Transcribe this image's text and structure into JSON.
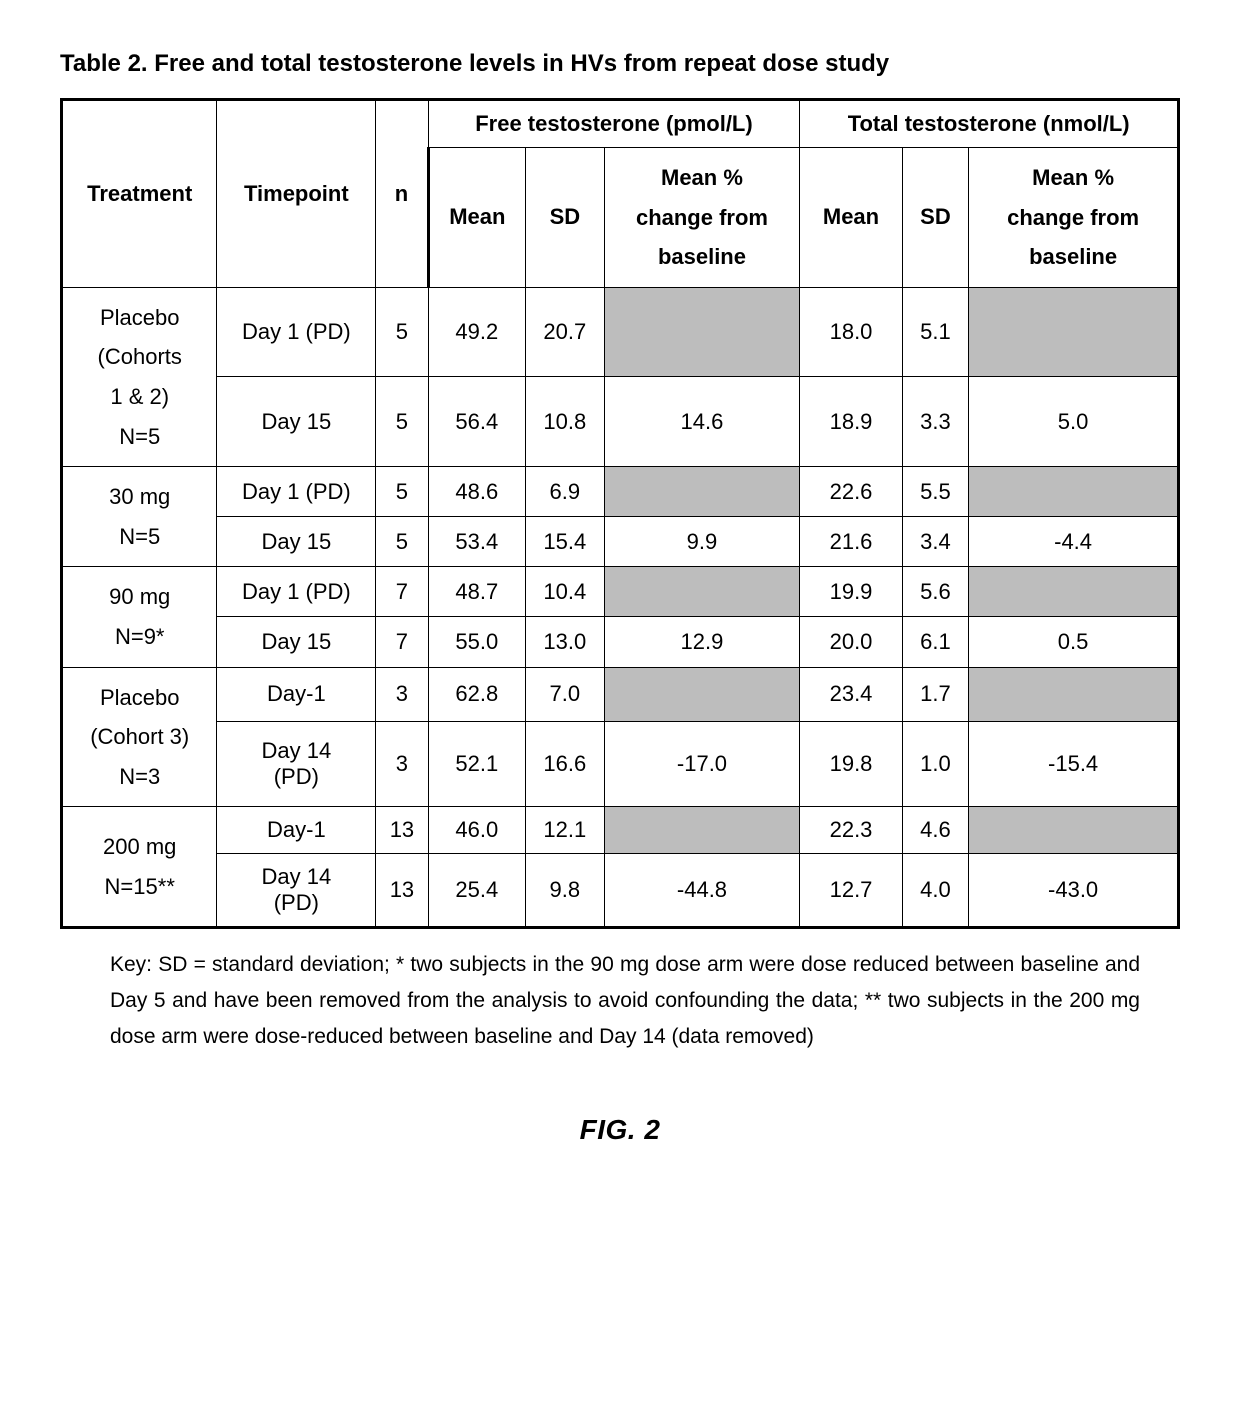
{
  "title": "Table 2.  Free and total testosterone levels in HVs from repeat dose study",
  "headers": {
    "treatment": "Treatment",
    "timepoint": "Timepoint",
    "n": "n",
    "free_group": "Free testosterone (pmol/L)",
    "total_group": "Total testosterone (nmol/L)",
    "mean": "Mean",
    "sd": "SD",
    "mean_change": "Mean %\nchange from\nbaseline"
  },
  "rows": [
    {
      "treatment_lines": [
        "Placebo",
        "(Cohorts",
        "1 & 2)",
        "N=5"
      ],
      "sub": [
        {
          "timepoint": "Day 1 (PD)",
          "n": "5",
          "f_mean": "49.2",
          "f_sd": "20.7",
          "f_chg": "",
          "f_shaded": true,
          "t_mean": "18.0",
          "t_sd": "5.1",
          "t_chg": "",
          "t_shaded": true
        },
        {
          "timepoint": "Day 15",
          "n": "5",
          "f_mean": "56.4",
          "f_sd": "10.8",
          "f_chg": "14.6",
          "f_shaded": false,
          "t_mean": "18.9",
          "t_sd": "3.3",
          "t_chg": "5.0",
          "t_shaded": false
        }
      ]
    },
    {
      "treatment_lines": [
        "30 mg",
        "N=5"
      ],
      "sub": [
        {
          "timepoint": "Day 1 (PD)",
          "n": "5",
          "f_mean": "48.6",
          "f_sd": "6.9",
          "f_chg": "",
          "f_shaded": true,
          "t_mean": "22.6",
          "t_sd": "5.5",
          "t_chg": "",
          "t_shaded": true
        },
        {
          "timepoint": "Day 15",
          "n": "5",
          "f_mean": "53.4",
          "f_sd": "15.4",
          "f_chg": "9.9",
          "f_shaded": false,
          "t_mean": "21.6",
          "t_sd": "3.4",
          "t_chg": "-4.4",
          "t_shaded": false
        }
      ]
    },
    {
      "treatment_lines": [
        "90 mg",
        "N=9*"
      ],
      "sub": [
        {
          "timepoint": "Day 1 (PD)",
          "n": "7",
          "f_mean": "48.7",
          "f_sd": "10.4",
          "f_chg": "",
          "f_shaded": true,
          "t_mean": "19.9",
          "t_sd": "5.6",
          "t_chg": "",
          "t_shaded": true
        },
        {
          "timepoint": "Day 15",
          "n": "7",
          "f_mean": "55.0",
          "f_sd": "13.0",
          "f_chg": "12.9",
          "f_shaded": false,
          "t_mean": "20.0",
          "t_sd": "6.1",
          "t_chg": "0.5",
          "t_shaded": false
        }
      ]
    },
    {
      "treatment_lines": [
        "Placebo",
        "(Cohort 3)",
        "N=3"
      ],
      "sub": [
        {
          "timepoint": "Day-1",
          "n": "3",
          "f_mean": "62.8",
          "f_sd": "7.0",
          "f_chg": "",
          "f_shaded": true,
          "t_mean": "23.4",
          "t_sd": "1.7",
          "t_chg": "",
          "t_shaded": true
        },
        {
          "timepoint": "Day 14\n(PD)",
          "n": "3",
          "f_mean": "52.1",
          "f_sd": "16.6",
          "f_chg": "-17.0",
          "f_shaded": false,
          "t_mean": "19.8",
          "t_sd": "1.0",
          "t_chg": "-15.4",
          "t_shaded": false
        }
      ]
    },
    {
      "treatment_lines": [
        "200 mg",
        "N=15**"
      ],
      "sub": [
        {
          "timepoint": "Day-1",
          "n": "13",
          "f_mean": "46.0",
          "f_sd": "12.1",
          "f_chg": "",
          "f_shaded": true,
          "t_mean": "22.3",
          "t_sd": "4.6",
          "t_chg": "",
          "t_shaded": true
        },
        {
          "timepoint": "Day 14\n(PD)",
          "n": "13",
          "f_mean": "25.4",
          "f_sd": "9.8",
          "f_chg": "-44.8",
          "f_shaded": false,
          "t_mean": "12.7",
          "t_sd": "4.0",
          "t_chg": "-43.0",
          "t_shaded": false
        }
      ]
    }
  ],
  "footer": "Key: SD = standard deviation; * two subjects in the 90 mg dose arm were dose reduced between baseline and Day 5 and have been removed from the analysis to avoid confounding the data; ** two subjects in the 200 mg dose arm were dose-reduced between baseline and Day 14 (data removed)",
  "figure_label": "FIG. 2",
  "style": {
    "shaded_bg": "#bdbdbd",
    "border_color": "#000000",
    "font_family": "Arial",
    "title_fontsize": 24,
    "table_fontsize": 22,
    "footer_fontsize": 21,
    "fig_fontsize": 28
  }
}
